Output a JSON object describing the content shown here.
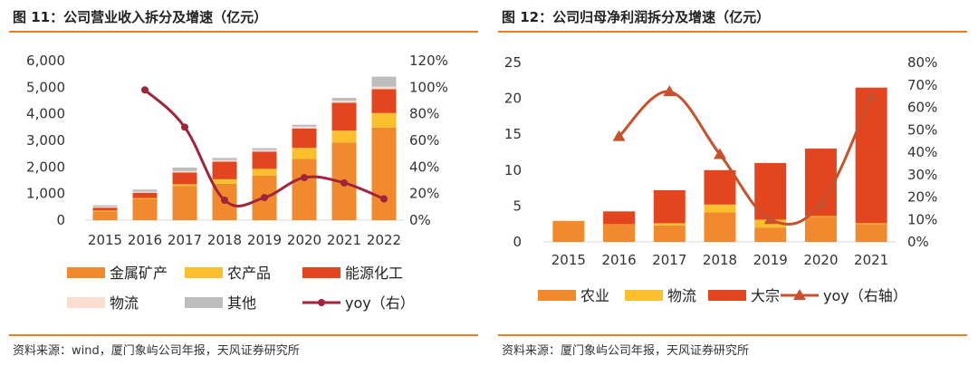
{
  "chart_data": [
    {
      "type": "bar",
      "title": "图 11：公司营业收入拆分及增速（亿元）",
      "source": "资料来源：wind，厦门象屿公司年报，天风证券研究所",
      "categories": [
        "2015",
        "2016",
        "2017",
        "2018",
        "2019",
        "2020",
        "2021",
        "2022"
      ],
      "ylim": [
        0,
        6000
      ],
      "y_ticks": [
        "0",
        "1,000",
        "2,000",
        "3,000",
        "4,000",
        "5,000",
        "6,000"
      ],
      "y2lim": [
        0,
        120
      ],
      "y2_ticks": [
        "0%",
        "20%",
        "40%",
        "60%",
        "80%",
        "100%",
        "120%"
      ],
      "series": [
        {
          "name": "金属矿产",
          "color": "#f08a2c",
          "values": [
            330,
            800,
            1290,
            1370,
            1680,
            2300,
            2920,
            3480
          ]
        },
        {
          "name": "农产品",
          "color": "#fcbf2d",
          "values": [
            30,
            30,
            60,
            170,
            250,
            420,
            450,
            550
          ]
        },
        {
          "name": "能源化工",
          "color": "#e3461f",
          "values": [
            110,
            200,
            440,
            660,
            650,
            730,
            1050,
            900
          ]
        },
        {
          "name": "物流",
          "color": "#f9ddd0",
          "values": [
            40,
            40,
            60,
            60,
            60,
            70,
            80,
            90
          ]
        },
        {
          "name": "其他",
          "color": "#bdbdbd",
          "values": [
            50,
            80,
            130,
            80,
            70,
            70,
            100,
            380
          ]
        },
        {
          "name": "yoy（右）",
          "type": "line",
          "axis": "right",
          "color": "#a0253b",
          "values": [
            null,
            98,
            70,
            15,
            17,
            32,
            28,
            16
          ]
        }
      ],
      "legend_rows": [
        [
          "金属矿产",
          "农产品",
          "能源化工"
        ],
        [
          "物流",
          "其他",
          "yoy（右）"
        ]
      ]
    },
    {
      "type": "bar",
      "title": "图 12：公司归母净利润拆分及增速（亿元）",
      "source": "资料来源：厦门象屿公司年报，天风证券研究所",
      "categories": [
        "2015",
        "2016",
        "2017",
        "2018",
        "2019",
        "2020",
        "2021"
      ],
      "ylim": [
        0,
        25
      ],
      "y_ticks": [
        "0",
        "5",
        "10",
        "15",
        "20",
        "25"
      ],
      "y2lim": [
        0,
        80
      ],
      "y2_ticks": [
        "0%",
        "10%",
        "20%",
        "30%",
        "40%",
        "50%",
        "60%",
        "70%",
        "80%"
      ],
      "series": [
        {
          "name": "农业",
          "color": "#f08a2c",
          "values": [
            2.9,
            2.4,
            2.3,
            4.1,
            2.0,
            3.5,
            2.5
          ]
        },
        {
          "name": "物流",
          "color": "#fcbf2d",
          "values": [
            0.05,
            0.05,
            0.3,
            1.1,
            1.1,
            0.1,
            0.1
          ]
        },
        {
          "name": "大宗",
          "color": "#e3461f",
          "values": [
            0.0,
            1.8,
            4.6,
            4.8,
            7.9,
            9.4,
            18.9
          ]
        },
        {
          "name": "yoy（右轴）",
          "type": "line",
          "axis": "right",
          "color": "#c8512d",
          "values": [
            null,
            47,
            67,
            39,
            10,
            17,
            65
          ]
        }
      ],
      "legend_rows": [
        [
          "农业",
          "物流",
          "大宗",
          "yoy（右轴）"
        ]
      ]
    }
  ]
}
